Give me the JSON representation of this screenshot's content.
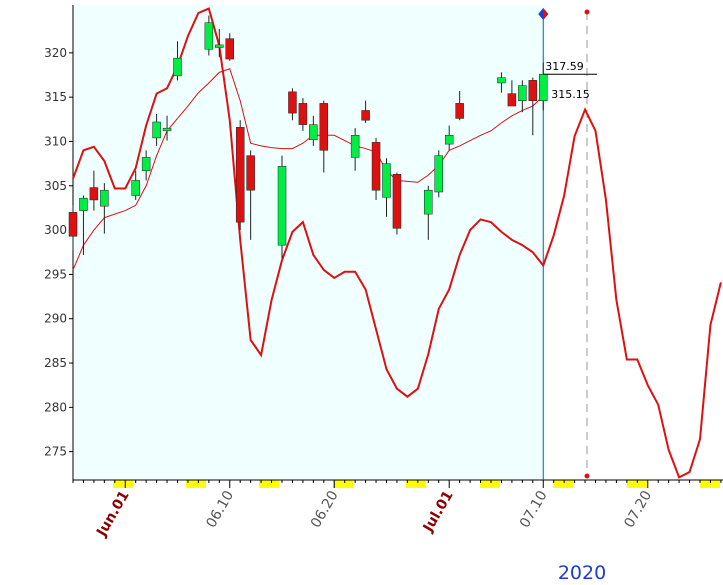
{
  "chart_data": {
    "type": "candlestick",
    "categories": [
      null,
      null,
      null,
      null,
      null,
      "Jun.01",
      null,
      null,
      null,
      null,
      null,
      null,
      null,
      null,
      null,
      "06.10",
      null,
      null,
      null,
      null,
      null,
      null,
      null,
      null,
      null,
      "06.20",
      null,
      null,
      null,
      null,
      null,
      null,
      null,
      null,
      null,
      null,
      "Jul.01",
      null,
      null,
      null,
      null,
      null,
      null,
      null,
      null,
      "07.10",
      null,
      null,
      null,
      null,
      null,
      null,
      null,
      null,
      null,
      "07.20",
      null,
      null,
      null,
      null,
      null,
      null,
      null
    ],
    "open": [
      302,
      302.2,
      304.8,
      302.7,
      null,
      null,
      303.9,
      306.7,
      310.4,
      311.2,
      317.4,
      null,
      null,
      320.4,
      320.6,
      321.6,
      311.6,
      308.4,
      null,
      null,
      298.3,
      315.6,
      314.3,
      310.2,
      314.3,
      null,
      null,
      308.2,
      313.5,
      309.9,
      303.7,
      306.3,
      null,
      null,
      301.8,
      304.3,
      309.7,
      314.3,
      null,
      null,
      null,
      316.6,
      315.4,
      314.6,
      316.9,
      314.6,
      null,
      null,
      null,
      null,
      null,
      null,
      null,
      null,
      null,
      null,
      null,
      null,
      null,
      null,
      null,
      null,
      null
    ],
    "high": [
      302.8,
      303.9,
      306.7,
      305.3,
      null,
      null,
      306.7,
      309,
      313.1,
      312.9,
      321.3,
      null,
      null,
      324.2,
      322.7,
      322.2,
      312.4,
      309,
      null,
      null,
      308.4,
      316,
      314.9,
      312.9,
      314.6,
      null,
      null,
      311.5,
      314.6,
      310.4,
      308.1,
      306.5,
      null,
      null,
      305,
      309,
      311.8,
      315.7,
      null,
      null,
      null,
      317.8,
      316.9,
      316.9,
      317.2,
      318.9,
      null,
      null,
      null,
      null,
      null,
      null,
      null,
      null,
      null,
      null,
      null,
      null,
      null,
      null,
      null,
      null,
      null
    ],
    "low": [
      297.7,
      297.2,
      302.2,
      299.6,
      null,
      null,
      303.4,
      305.6,
      309.5,
      310.1,
      316.9,
      null,
      null,
      319.7,
      319.5,
      319.1,
      300,
      298.9,
      null,
      null,
      296.8,
      312.4,
      311.2,
      309.5,
      306.5,
      null,
      null,
      306.7,
      312.1,
      303.4,
      301.5,
      299.5,
      null,
      null,
      298.9,
      303.7,
      309,
      312.4,
      null,
      null,
      null,
      315.5,
      314.3,
      313.3,
      310.7,
      313.5,
      null,
      null,
      null,
      null,
      null,
      null,
      null,
      null,
      null,
      null,
      null,
      null,
      null,
      null,
      null,
      null,
      null
    ],
    "close": [
      299.3,
      303.6,
      303.4,
      304.5,
      null,
      null,
      305.6,
      308.2,
      312.2,
      311.5,
      319.4,
      null,
      null,
      323.4,
      320.9,
      319.3,
      300.9,
      304.5,
      null,
      null,
      307.2,
      313.2,
      311.9,
      311.9,
      309,
      null,
      null,
      310.7,
      312.4,
      304.5,
      307.5,
      300.2,
      null,
      null,
      304.5,
      308.4,
      310.7,
      312.6,
      null,
      null,
      null,
      317.2,
      314,
      316.3,
      314.6,
      317.59,
      null,
      null,
      null,
      null,
      null,
      null,
      null,
      null,
      null,
      null,
      null,
      null,
      null,
      null,
      null,
      null,
      null
    ],
    "up_color": "#00ee44",
    "down_color": "#dd1111",
    "lines": [
      {
        "color": "#dd1111",
        "width": 2,
        "values": [
          305.8,
          309,
          309.4,
          307.8,
          304.7,
          304.7,
          307,
          311.8,
          315.4,
          316,
          318.5,
          321.9,
          324.5,
          325,
          320.8,
          312.4,
          298.9,
          287.6,
          285.9,
          292.1,
          296.6,
          299.8,
          300.9,
          297.2,
          295.5,
          294.6,
          295.3,
          295.3,
          293.3,
          288.8,
          284.3,
          282.1,
          281.2,
          282.1,
          286,
          291.1,
          293.3,
          297.2,
          300,
          301.2,
          300.9,
          299.8,
          298.9,
          298.3,
          297.5,
          296,
          299.4,
          303.9,
          310.6,
          313.6,
          311.2,
          303.4,
          292.1,
          285.4,
          285.4,
          282.5,
          280.3,
          275.2,
          272.1,
          272.7,
          276.4,
          289.3,
          294.1
        ]
      },
      {
        "color": "#dd1111",
        "width": 1,
        "values": [
          295.5,
          298.3,
          300,
          301.4,
          301.8,
          302.2,
          302.8,
          305,
          308.4,
          311.2,
          312.6,
          314,
          315.5,
          316.6,
          317.8,
          318.2,
          314.6,
          309.8,
          309.5,
          309.3,
          309.2,
          309.2,
          309.8,
          310.7,
          310.7,
          310.7,
          310.1,
          309.5,
          309.2,
          308.8,
          306.7,
          305.6,
          305.5,
          305.4,
          306.2,
          307.3,
          309,
          309.5,
          310.1,
          310.7,
          311.2,
          312.1,
          312.9,
          313.5,
          314,
          315.15,
          null,
          null,
          null,
          null,
          null,
          null,
          null,
          null,
          null,
          null,
          null,
          null,
          null,
          null,
          null,
          null,
          null
        ]
      }
    ],
    "ylim": [
      271.8,
      325.4
    ],
    "yticks": [
      275,
      280,
      285,
      290,
      295,
      300,
      305,
      310,
      315,
      320
    ],
    "year_label": "2020"
  }
}
